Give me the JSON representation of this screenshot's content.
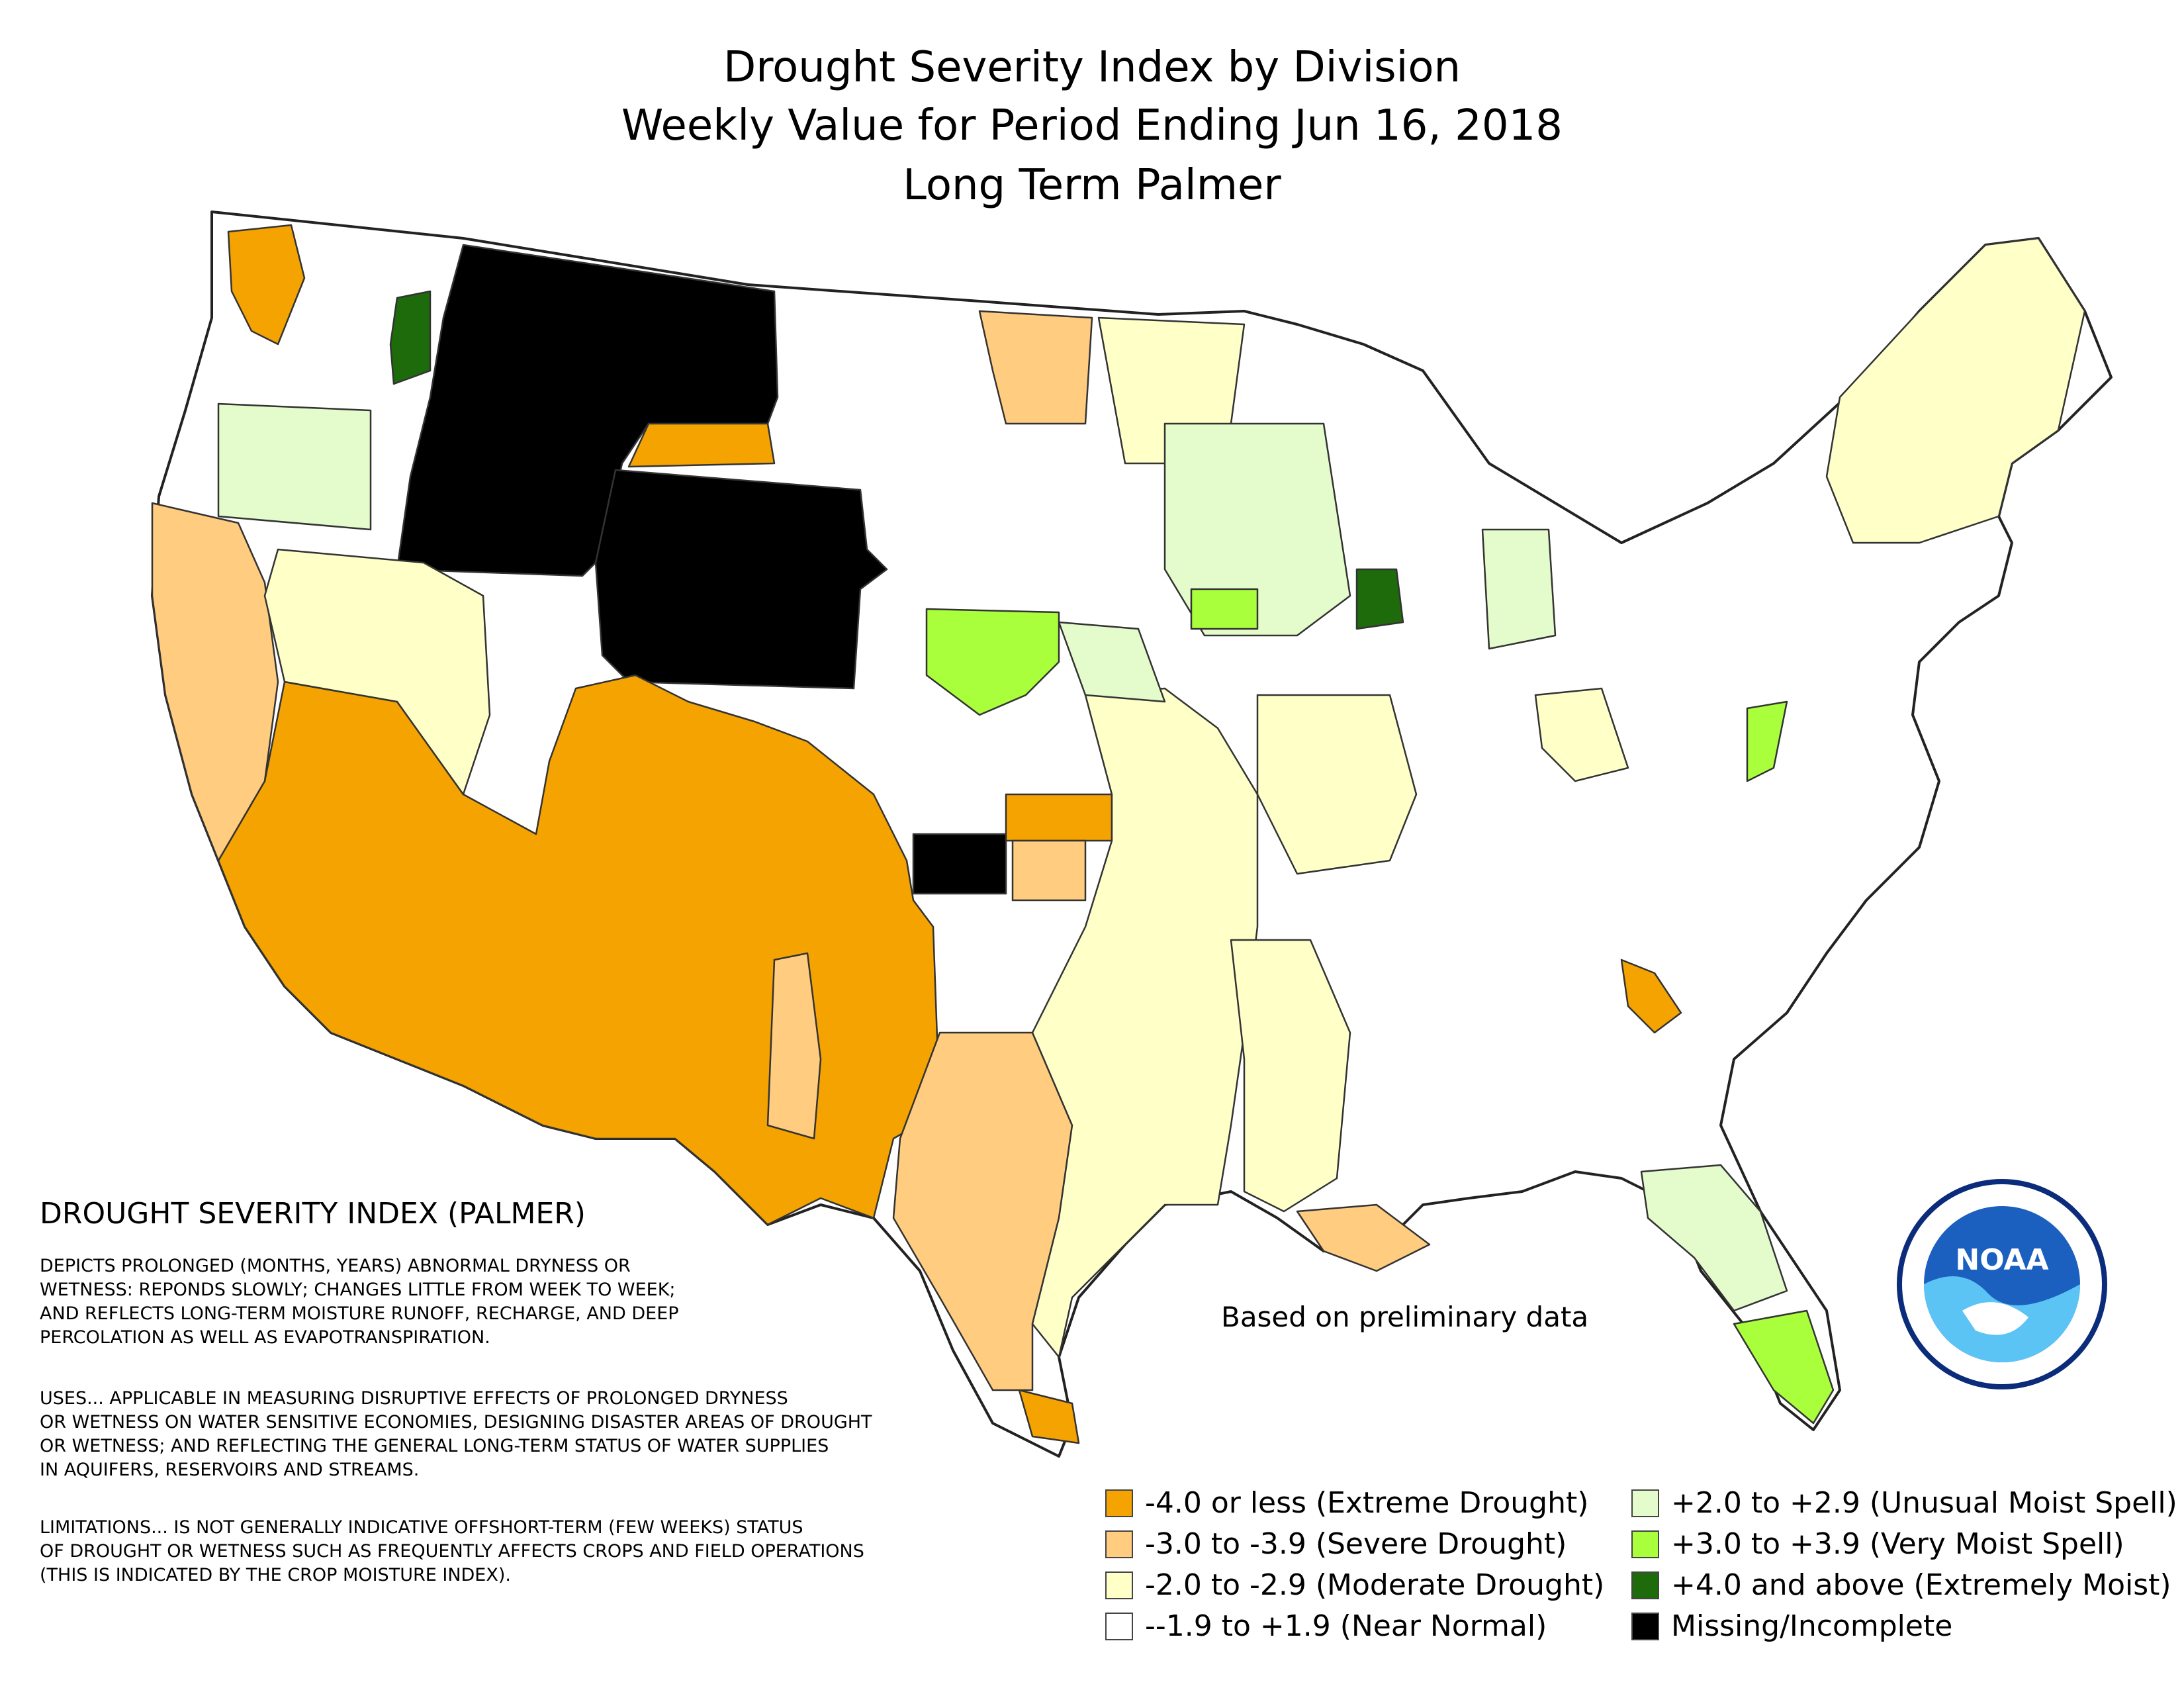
{
  "title": {
    "line1": "Drought Severity Index by Division",
    "line2": "Weekly Value for Period Ending Jun 16, 2018",
    "line3": "Long Term Palmer"
  },
  "colors": {
    "extreme_drought": "#F5A300",
    "severe_drought": "#FFCC80",
    "moderate_drought": "#FFFFC8",
    "near_normal": "#FFFFFF",
    "unusual_moist": "#E4FBCB",
    "very_moist": "#AAFF3C",
    "extremely_moist": "#1D6B0A",
    "missing": "#000000",
    "noaa_blue": "#1B5FBF",
    "noaa_navy": "#0A2C7A"
  },
  "text": {
    "legend_title": "DROUGHT SEVERITY INDEX (PALMER)",
    "p1": "DEPICTS PROLONGED (MONTHS, YEARS) ABNORMAL DRYNESS OR\nWETNESS: REPONDS SLOWLY; CHANGES LITTLE FROM WEEK TO WEEK;\nAND REFLECTS LONG-TERM MOISTURE RUNOFF, RECHARGE, AND DEEP\nPERCOLATION AS WELL AS EVAPOTRANSPIRATION.",
    "p2": "USES... APPLICABLE IN MEASURING DISRUPTIVE EFFECTS OF PROLONGED DRYNESS\nOR WETNESS ON WATER SENSITIVE ECONOMIES, DESIGNING DISASTER AREAS OF DROUGHT\nOR WETNESS; AND REFLECTING THE GENERAL LONG-TERM STATUS OF WATER SUPPLIES\nIN AQUIFERS, RESERVOIRS AND STREAMS.",
    "p3": "LIMITATIONS... IS NOT GENERALLY INDICATIVE OFFSHORT-TERM (FEW WEEKS) STATUS\nOF DROUGHT OR WETNESS SUCH AS FREQUENTLY AFFECTS CROPS AND FIELD OPERATIONS\n(THIS IS INDICATED BY THE CROP MOISTURE INDEX).",
    "preliminary": "Based on preliminary data",
    "noaa": "NOAA"
  },
  "legend": {
    "left": [
      {
        "label": "-4.0 or less (Extreme Drought)",
        "color": "#F5A300"
      },
      {
        "label": "-3.0 to -3.9 (Severe Drought)",
        "color": "#FFCC80"
      },
      {
        "label": "-2.0 to -2.9 (Moderate Drought)",
        "color": "#FFFFC8"
      },
      {
        "label": "--1.9 to +1.9 (Near Normal)",
        "color": "#FFFFFF"
      }
    ],
    "right": [
      {
        "label": "+2.0 to +2.9 (Unusual Moist Spell)",
        "color": "#E4FBCB"
      },
      {
        "label": "+3.0 to +3.9 (Very Moist Spell)",
        "color": "#AAFF3C"
      },
      {
        "label": "+4.0 and above (Extremely Moist)",
        "color": "#1D6B0A"
      },
      {
        "label": "Missing/Incomplete",
        "color": "#000000"
      }
    ]
  }
}
